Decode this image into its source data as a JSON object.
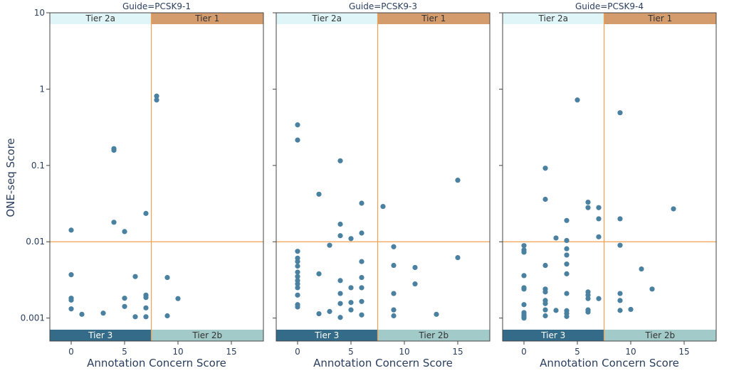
{
  "chart_data": {
    "type": "scatter",
    "xlabel": "Annotation Concern Score",
    "ylabel": "ONE-seq Score",
    "xlim": [
      -2,
      18
    ],
    "ylim": [
      0.0005,
      10
    ],
    "yscale": "log",
    "xticks": [
      0,
      5,
      10,
      15
    ],
    "xtick_labels": [
      "0",
      "5",
      "10",
      "15"
    ],
    "yticks": [
      0.001,
      0.01,
      0.1,
      1,
      10
    ],
    "ytick_labels": [
      "0.001",
      "0.01",
      "0.1",
      "1",
      "10"
    ],
    "threshold_x": 7.5,
    "threshold_y": 0.01,
    "tier_labels": {
      "tier1": "Tier 1",
      "tier2a": "Tier 2a",
      "tier2b": "Tier 2b",
      "tier3": "Tier 3"
    },
    "colors": {
      "point": "#4a80a0",
      "threshold": "#f0a050",
      "tier1": "#d49c6c",
      "tier2a": "#dff5f7",
      "tier2b": "#a2cac8",
      "tier3": "#336b88",
      "tier1_text": "#333333",
      "tier2a_text": "#333333",
      "tier2b_text": "#333333",
      "tier3_text": "#ffffff"
    },
    "panels": [
      {
        "title": "Guide=PCSK9-1",
        "points": [
          {
            "x": 0,
            "y": 0.0142
          },
          {
            "x": 0,
            "y": 0.0037
          },
          {
            "x": 0,
            "y": 0.00182
          },
          {
            "x": 0,
            "y": 0.00172
          },
          {
            "x": 0,
            "y": 0.00132
          },
          {
            "x": 1,
            "y": 0.00112
          },
          {
            "x": 3,
            "y": 0.00116
          },
          {
            "x": 4,
            "y": 0.166
          },
          {
            "x": 4,
            "y": 0.158
          },
          {
            "x": 4,
            "y": 0.018
          },
          {
            "x": 5,
            "y": 0.0136
          },
          {
            "x": 5,
            "y": 0.00182
          },
          {
            "x": 5,
            "y": 0.00142
          },
          {
            "x": 6,
            "y": 0.0035
          },
          {
            "x": 6,
            "y": 0.00104
          },
          {
            "x": 7,
            "y": 0.0235
          },
          {
            "x": 7,
            "y": 0.002
          },
          {
            "x": 7,
            "y": 0.00186
          },
          {
            "x": 7,
            "y": 0.00136
          },
          {
            "x": 7,
            "y": 0.00104
          },
          {
            "x": 8,
            "y": 0.81
          },
          {
            "x": 8,
            "y": 0.72
          },
          {
            "x": 9,
            "y": 0.0034
          },
          {
            "x": 9,
            "y": 0.00107
          },
          {
            "x": 10,
            "y": 0.0018
          }
        ]
      },
      {
        "title": "Guide=PCSK9-3",
        "points": [
          {
            "x": 0,
            "y": 0.34
          },
          {
            "x": 0,
            "y": 0.215
          },
          {
            "x": 0,
            "y": 0.0075
          },
          {
            "x": 0,
            "y": 0.0061
          },
          {
            "x": 0,
            "y": 0.0055
          },
          {
            "x": 0,
            "y": 0.0048
          },
          {
            "x": 0,
            "y": 0.004
          },
          {
            "x": 0,
            "y": 0.0035
          },
          {
            "x": 0,
            "y": 0.0031
          },
          {
            "x": 0,
            "y": 0.0028
          },
          {
            "x": 0,
            "y": 0.0025
          },
          {
            "x": 0,
            "y": 0.002
          },
          {
            "x": 0,
            "y": 0.0015
          },
          {
            "x": 0,
            "y": 0.0014
          },
          {
            "x": 2,
            "y": 0.042
          },
          {
            "x": 2,
            "y": 0.0038
          },
          {
            "x": 2,
            "y": 0.00114
          },
          {
            "x": 3,
            "y": 0.009
          },
          {
            "x": 3,
            "y": 0.00122
          },
          {
            "x": 4,
            "y": 0.115
          },
          {
            "x": 4,
            "y": 0.017
          },
          {
            "x": 4,
            "y": 0.012
          },
          {
            "x": 4,
            "y": 0.0031
          },
          {
            "x": 4,
            "y": 0.0021
          },
          {
            "x": 4,
            "y": 0.00155
          },
          {
            "x": 4,
            "y": 0.00102
          },
          {
            "x": 5,
            "y": 0.011
          },
          {
            "x": 5,
            "y": 0.0025
          },
          {
            "x": 5,
            "y": 0.0016
          },
          {
            "x": 5,
            "y": 0.00128
          },
          {
            "x": 6,
            "y": 0.032
          },
          {
            "x": 6,
            "y": 0.013
          },
          {
            "x": 6,
            "y": 0.0055
          },
          {
            "x": 6,
            "y": 0.0034
          },
          {
            "x": 6,
            "y": 0.0025
          },
          {
            "x": 6,
            "y": 0.00165
          },
          {
            "x": 6,
            "y": 0.0011
          },
          {
            "x": 8,
            "y": 0.029
          },
          {
            "x": 9,
            "y": 0.0086
          },
          {
            "x": 9,
            "y": 0.0049
          },
          {
            "x": 9,
            "y": 0.0021
          },
          {
            "x": 9,
            "y": 0.00128
          },
          {
            "x": 9,
            "y": 0.00107
          },
          {
            "x": 11,
            "y": 0.0046
          },
          {
            "x": 11,
            "y": 0.0028
          },
          {
            "x": 13,
            "y": 0.00112
          },
          {
            "x": 15,
            "y": 0.064
          },
          {
            "x": 15,
            "y": 0.0062
          }
        ]
      },
      {
        "title": "Guide=PCSK9-4",
        "points": [
          {
            "x": 0,
            "y": 0.0089
          },
          {
            "x": 0,
            "y": 0.0078
          },
          {
            "x": 0,
            "y": 0.0073
          },
          {
            "x": 0,
            "y": 0.0036
          },
          {
            "x": 0,
            "y": 0.0025
          },
          {
            "x": 0,
            "y": 0.0024
          },
          {
            "x": 0,
            "y": 0.0015
          },
          {
            "x": 0,
            "y": 0.00118
          },
          {
            "x": 0,
            "y": 0.0011
          },
          {
            "x": 0,
            "y": 0.00105
          },
          {
            "x": 0,
            "y": 0.001
          },
          {
            "x": 2,
            "y": 0.092
          },
          {
            "x": 2,
            "y": 0.036
          },
          {
            "x": 2,
            "y": 0.0049
          },
          {
            "x": 2,
            "y": 0.0024
          },
          {
            "x": 2,
            "y": 0.0022
          },
          {
            "x": 2,
            "y": 0.0017
          },
          {
            "x": 2,
            "y": 0.00155
          },
          {
            "x": 2,
            "y": 0.00128
          },
          {
            "x": 2,
            "y": 0.00107
          },
          {
            "x": 3,
            "y": 0.0112
          },
          {
            "x": 3,
            "y": 0.00126
          },
          {
            "x": 4,
            "y": 0.019
          },
          {
            "x": 4,
            "y": 0.0104
          },
          {
            "x": 4,
            "y": 0.0081
          },
          {
            "x": 4,
            "y": 0.0067
          },
          {
            "x": 4,
            "y": 0.0051
          },
          {
            "x": 4,
            "y": 0.0038
          },
          {
            "x": 4,
            "y": 0.0021
          },
          {
            "x": 4,
            "y": 0.00125
          },
          {
            "x": 4,
            "y": 0.00115
          },
          {
            "x": 4,
            "y": 0.00105
          },
          {
            "x": 5,
            "y": 0.72
          },
          {
            "x": 6,
            "y": 0.033
          },
          {
            "x": 6,
            "y": 0.028
          },
          {
            "x": 6,
            "y": 0.0022
          },
          {
            "x": 6,
            "y": 0.002
          },
          {
            "x": 6,
            "y": 0.0018
          },
          {
            "x": 6,
            "y": 0.00128
          },
          {
            "x": 6,
            "y": 0.0012
          },
          {
            "x": 7,
            "y": 0.028
          },
          {
            "x": 7,
            "y": 0.02
          },
          {
            "x": 7,
            "y": 0.0116
          },
          {
            "x": 7,
            "y": 0.0018
          },
          {
            "x": 9,
            "y": 0.49
          },
          {
            "x": 9,
            "y": 0.02
          },
          {
            "x": 9,
            "y": 0.009
          },
          {
            "x": 9,
            "y": 0.0021
          },
          {
            "x": 9,
            "y": 0.0017
          },
          {
            "x": 9,
            "y": 0.00126
          },
          {
            "x": 10,
            "y": 0.0013
          },
          {
            "x": 11,
            "y": 0.0044
          },
          {
            "x": 12,
            "y": 0.0024
          },
          {
            "x": 14,
            "y": 0.027
          }
        ]
      }
    ]
  }
}
